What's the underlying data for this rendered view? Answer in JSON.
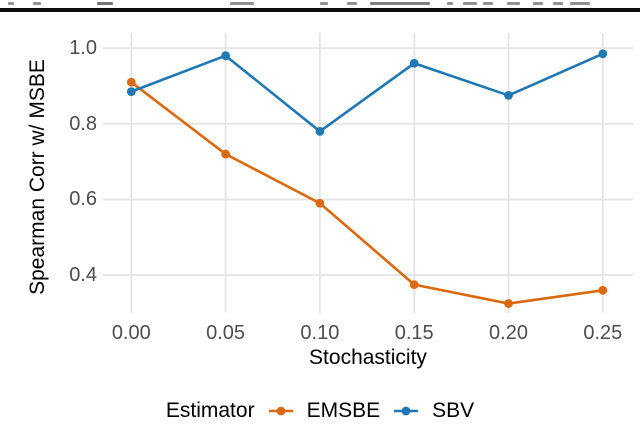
{
  "document": {
    "top_rule_color": "#0d0d0d"
  },
  "chart_data": {
    "type": "line",
    "title": "",
    "xlabel": "Stochasticity",
    "ylabel": "Spearman Corr w/ MSBE",
    "legend_title": "Estimator",
    "legend_position": "bottom",
    "grid": true,
    "background": "#ffffff",
    "grid_color": "#e4e4e4",
    "tick_label_color": "#4d4d4d",
    "axis_title_color": "#000000",
    "x": [
      0,
      0.05,
      0.1,
      0.15,
      0.2,
      0.25
    ],
    "x_tick_labels": [
      "0.00",
      "0.05",
      "0.10",
      "0.15",
      "0.20",
      "0.25"
    ],
    "y_ticks": [
      0.4,
      0.6,
      0.8,
      1.0
    ],
    "y_tick_labels": [
      "0.4",
      "0.6",
      "0.8",
      "1.0"
    ],
    "xlim": [
      0,
      0.25
    ],
    "ylim": [
      0.3,
      1.04
    ],
    "series": [
      {
        "name": "EMSBE",
        "color": "#db6910",
        "values": [
          0.91,
          0.72,
          0.59,
          0.375,
          0.325,
          0.36
        ]
      },
      {
        "name": "SBV",
        "color": "#1f77b4",
        "values": [
          0.885,
          0.98,
          0.78,
          0.96,
          0.875,
          0.985
        ]
      }
    ]
  }
}
